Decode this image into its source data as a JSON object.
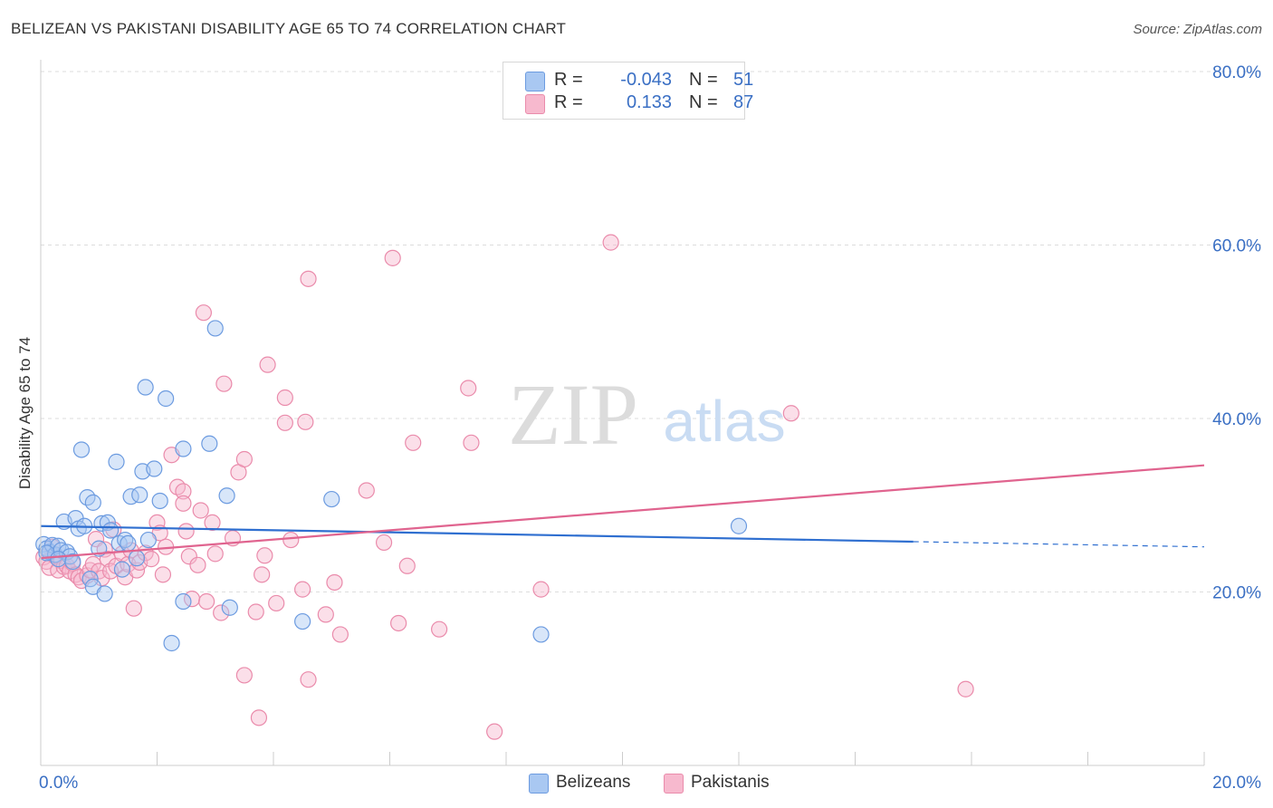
{
  "title": "BELIZEAN VS PAKISTANI DISABILITY AGE 65 TO 74 CORRELATION CHART",
  "source": "Source: ZipAtlas.com",
  "watermark": {
    "zip": "ZIP",
    "atlas": "atlas"
  },
  "legend_top": [
    {
      "r_label": "R =",
      "r_value": "-0.043",
      "n_label": "N =",
      "n_value": "51"
    },
    {
      "r_label": "R =",
      "r_value": "0.133",
      "n_label": "N =",
      "n_value": "87"
    }
  ],
  "legend_bottom": [
    {
      "label": "Belizeans"
    },
    {
      "label": "Pakistanis"
    }
  ],
  "colors": {
    "belizeans_fill": "#a9c8f2",
    "belizeans_stroke": "#6c9be0",
    "belizeans_line": "#2f6fd0",
    "pakistanis_fill": "#f7b9ce",
    "pakistanis_stroke": "#ea8bab",
    "pakistanis_line": "#e0648f",
    "tick_text": "#3a6fc4",
    "grid": "#dddddd"
  },
  "chart_data": {
    "type": "scatter",
    "title": "BELIZEAN VS PAKISTANI DISABILITY AGE 65 TO 74 CORRELATION CHART",
    "xlabel": "",
    "ylabel": "Disability Age 65 to 74",
    "xlim": [
      0,
      20
    ],
    "ylim": [
      0,
      80
    ],
    "x_tick_labels": [
      {
        "value": 0,
        "label": "0.0%"
      },
      {
        "value": 20,
        "label": "20.0%"
      }
    ],
    "y_tick_labels": [
      {
        "value": 20,
        "label": "20.0%"
      },
      {
        "value": 40,
        "label": "40.0%"
      },
      {
        "value": 60,
        "label": "60.0%"
      },
      {
        "value": 80,
        "label": "80.0%"
      }
    ],
    "series": [
      {
        "name": "Belizeans",
        "points": [
          [
            0.05,
            25.5
          ],
          [
            0.1,
            25.0
          ],
          [
            0.15,
            24.6
          ],
          [
            0.2,
            25.4
          ],
          [
            0.25,
            24.3
          ],
          [
            0.3,
            25.3
          ],
          [
            0.35,
            24.8
          ],
          [
            0.4,
            28.1
          ],
          [
            0.45,
            24.6
          ],
          [
            0.5,
            24.1
          ],
          [
            0.6,
            28.5
          ],
          [
            0.65,
            27.3
          ],
          [
            0.7,
            36.4
          ],
          [
            0.75,
            27.6
          ],
          [
            0.8,
            30.9
          ],
          [
            0.85,
            21.5
          ],
          [
            0.9,
            30.3
          ],
          [
            0.9,
            20.6
          ],
          [
            1.0,
            25.0
          ],
          [
            1.05,
            27.9
          ],
          [
            1.1,
            19.8
          ],
          [
            1.15,
            28.0
          ],
          [
            1.2,
            27.1
          ],
          [
            1.3,
            35.0
          ],
          [
            1.35,
            25.6
          ],
          [
            1.4,
            22.6
          ],
          [
            1.45,
            26.0
          ],
          [
            1.5,
            25.6
          ],
          [
            1.55,
            31.0
          ],
          [
            1.7,
            31.2
          ],
          [
            1.75,
            33.9
          ],
          [
            1.8,
            43.6
          ],
          [
            1.85,
            26.0
          ],
          [
            1.95,
            34.2
          ],
          [
            2.05,
            30.5
          ],
          [
            2.15,
            42.3
          ],
          [
            2.25,
            14.1
          ],
          [
            2.45,
            36.5
          ],
          [
            2.45,
            18.9
          ],
          [
            2.9,
            37.1
          ],
          [
            3.0,
            50.4
          ],
          [
            3.2,
            31.1
          ],
          [
            3.25,
            18.2
          ],
          [
            4.5,
            16.6
          ],
          [
            5.0,
            30.7
          ],
          [
            8.6,
            15.1
          ],
          [
            12.0,
            27.6
          ],
          [
            0.1,
            24.5
          ],
          [
            0.3,
            23.8
          ],
          [
            0.55,
            23.5
          ],
          [
            1.65,
            23.9
          ]
        ],
        "trend": {
          "x_start": 0,
          "y_start": 27.6,
          "x_solid_end": 15.0,
          "y_solid_end": 25.8,
          "x_end": 20.0,
          "y_end": 25.2
        }
      },
      {
        "name": "Pakistanis",
        "points": [
          [
            0.05,
            24.0
          ],
          [
            0.1,
            23.5
          ],
          [
            0.15,
            22.8
          ],
          [
            0.2,
            25.2
          ],
          [
            0.25,
            24.1
          ],
          [
            0.3,
            22.5
          ],
          [
            0.35,
            23.6
          ],
          [
            0.4,
            22.9
          ],
          [
            0.45,
            23.0
          ],
          [
            0.5,
            22.4
          ],
          [
            0.55,
            23.3
          ],
          [
            0.6,
            22.0
          ],
          [
            0.65,
            21.7
          ],
          [
            0.7,
            21.3
          ],
          [
            0.8,
            21.9
          ],
          [
            0.85,
            22.5
          ],
          [
            0.9,
            23.2
          ],
          [
            0.95,
            26.1
          ],
          [
            1.0,
            22.4
          ],
          [
            1.05,
            21.6
          ],
          [
            1.1,
            24.9
          ],
          [
            1.15,
            23.8
          ],
          [
            1.2,
            22.4
          ],
          [
            1.25,
            27.2
          ],
          [
            1.3,
            23.0
          ],
          [
            1.4,
            24.4
          ],
          [
            1.45,
            21.7
          ],
          [
            1.5,
            23.2
          ],
          [
            1.55,
            24.8
          ],
          [
            1.6,
            18.1
          ],
          [
            1.65,
            22.5
          ],
          [
            1.7,
            23.4
          ],
          [
            1.8,
            24.5
          ],
          [
            1.9,
            23.8
          ],
          [
            2.0,
            28.0
          ],
          [
            2.05,
            26.8
          ],
          [
            2.1,
            22.0
          ],
          [
            2.15,
            25.2
          ],
          [
            2.25,
            35.8
          ],
          [
            2.35,
            32.1
          ],
          [
            2.45,
            31.6
          ],
          [
            2.45,
            30.2
          ],
          [
            2.5,
            27.0
          ],
          [
            2.55,
            24.1
          ],
          [
            2.6,
            19.2
          ],
          [
            2.7,
            23.1
          ],
          [
            2.75,
            29.4
          ],
          [
            2.8,
            52.2
          ],
          [
            2.85,
            18.9
          ],
          [
            2.95,
            28.0
          ],
          [
            3.0,
            24.4
          ],
          [
            3.1,
            17.6
          ],
          [
            3.15,
            44.0
          ],
          [
            3.3,
            26.2
          ],
          [
            3.4,
            33.8
          ],
          [
            3.5,
            35.3
          ],
          [
            3.5,
            10.4
          ],
          [
            3.7,
            17.7
          ],
          [
            3.75,
            5.5
          ],
          [
            3.8,
            22.0
          ],
          [
            3.85,
            24.2
          ],
          [
            3.9,
            46.2
          ],
          [
            4.05,
            18.7
          ],
          [
            4.2,
            42.4
          ],
          [
            4.2,
            39.5
          ],
          [
            4.3,
            26.0
          ],
          [
            4.5,
            20.3
          ],
          [
            4.55,
            39.6
          ],
          [
            4.6,
            56.1
          ],
          [
            4.6,
            9.9
          ],
          [
            4.9,
            17.4
          ],
          [
            5.05,
            21.1
          ],
          [
            5.15,
            15.1
          ],
          [
            5.6,
            31.7
          ],
          [
            5.9,
            25.7
          ],
          [
            6.05,
            58.5
          ],
          [
            6.15,
            16.4
          ],
          [
            6.3,
            23.0
          ],
          [
            6.4,
            37.2
          ],
          [
            6.85,
            15.7
          ],
          [
            7.35,
            43.5
          ],
          [
            7.4,
            37.2
          ],
          [
            7.8,
            3.9
          ],
          [
            8.6,
            20.3
          ],
          [
            9.8,
            60.3
          ],
          [
            12.9,
            40.6
          ],
          [
            15.9,
            8.8
          ]
        ],
        "trend": {
          "x_start": 0,
          "y_start": 23.9,
          "x_end": 20.0,
          "y_end": 34.6
        }
      }
    ]
  }
}
